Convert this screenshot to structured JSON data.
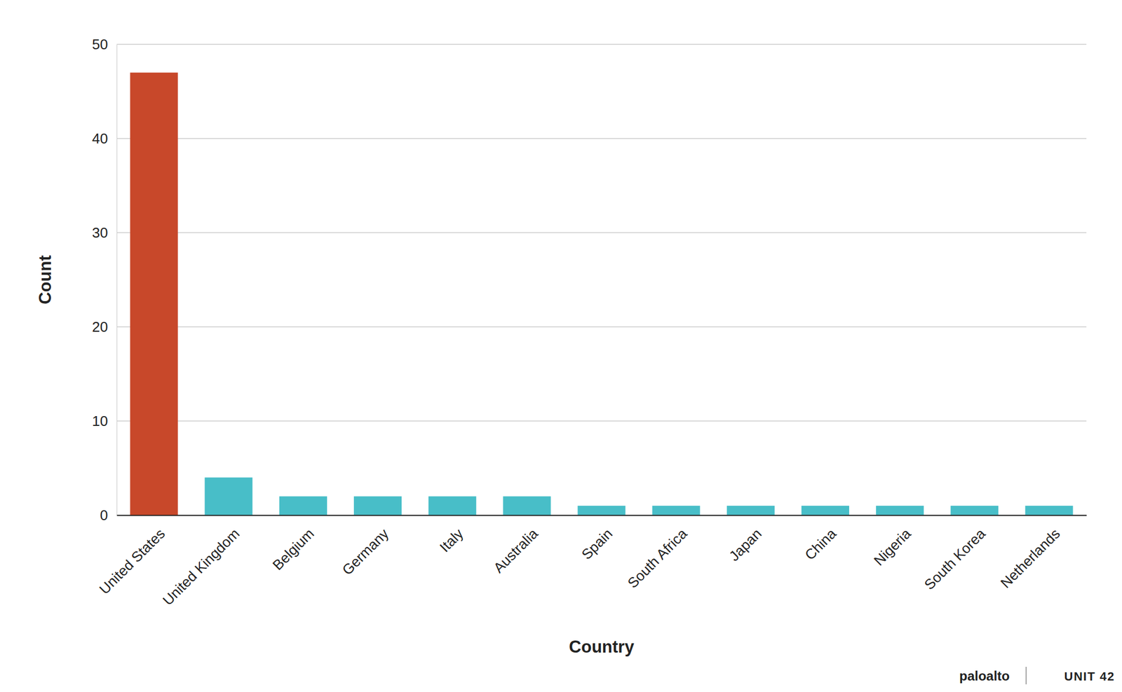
{
  "chart_data": {
    "type": "bar",
    "x_label": "Country",
    "y_label": "Count",
    "categories": [
      "United States",
      "United Kingdom",
      "Belgium",
      "Germany",
      "Italy",
      "Australia",
      "Spain",
      "South Africa",
      "Japan",
      "China",
      "Nigeria",
      "South Korea",
      "Netherlands"
    ],
    "values": [
      47,
      4,
      2,
      2,
      2,
      2,
      1,
      1,
      1,
      1,
      1,
      1,
      1
    ],
    "colors": [
      "#c8482a",
      "#48bec8",
      "#48bec8",
      "#48bec8",
      "#48bec8",
      "#48bec8",
      "#48bec8",
      "#48bec8",
      "#48bec8",
      "#48bec8",
      "#48bec8",
      "#48bec8",
      "#48bec8"
    ],
    "ylim": [
      0,
      50
    ],
    "yticks": [
      0,
      10,
      20,
      30,
      40,
      50
    ],
    "grid": true,
    "annotations": [
      "paloalto",
      "UNIT 42"
    ]
  }
}
